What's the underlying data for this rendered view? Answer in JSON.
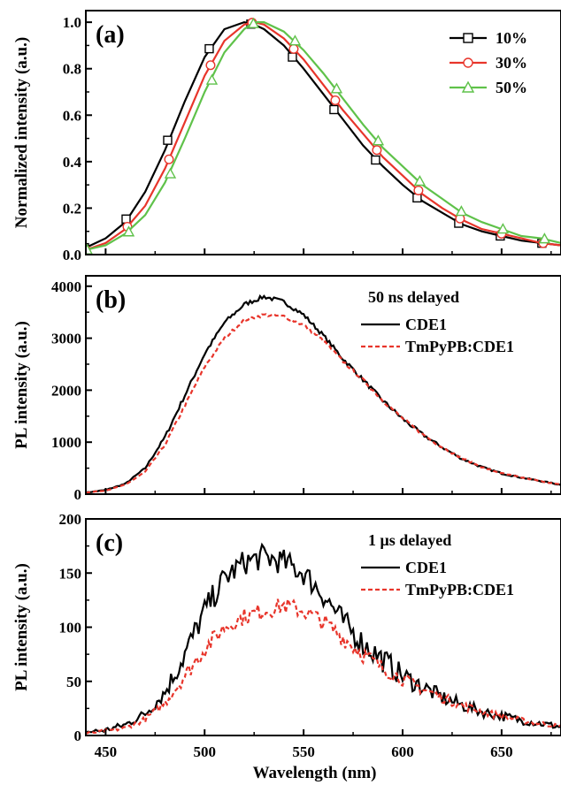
{
  "figure": {
    "xlabel": "Wavelength (nm)",
    "xlim": [
      440,
      680
    ],
    "xticks": [
      450,
      500,
      550,
      600,
      650
    ]
  },
  "chart_data": [
    {
      "type": "line",
      "panel_label": "(a)",
      "ylabel": "Normalized intensity (a.u.)",
      "ylim": [
        0,
        1.05
      ],
      "yticks": [
        0.0,
        0.2,
        0.4,
        0.6,
        0.8,
        1.0
      ],
      "ytick_labels": [
        "0.0",
        "0.2",
        "0.4",
        "0.6",
        "0.8",
        "1.0"
      ],
      "legend_position": "top-right",
      "series": [
        {
          "name": "10%",
          "color": "#000000",
          "marker": "square",
          "dash": "solid",
          "x": [
            440,
            450,
            460,
            470,
            480,
            490,
            500,
            510,
            520,
            525,
            530,
            540,
            550,
            560,
            570,
            580,
            590,
            600,
            610,
            620,
            630,
            640,
            650,
            660,
            670,
            680
          ],
          "y": [
            0.03,
            0.07,
            0.14,
            0.27,
            0.45,
            0.66,
            0.85,
            0.97,
            1.0,
            0.99,
            0.97,
            0.9,
            0.8,
            0.69,
            0.58,
            0.47,
            0.38,
            0.3,
            0.23,
            0.18,
            0.13,
            0.1,
            0.08,
            0.06,
            0.05,
            0.04
          ]
        },
        {
          "name": "30%",
          "color": "#e8352b",
          "marker": "circle",
          "dash": "solid",
          "x": [
            440,
            450,
            460,
            470,
            480,
            490,
            500,
            510,
            520,
            525,
            530,
            540,
            550,
            560,
            570,
            580,
            590,
            600,
            610,
            620,
            630,
            640,
            650,
            660,
            670,
            680
          ],
          "y": [
            0.02,
            0.05,
            0.11,
            0.21,
            0.37,
            0.57,
            0.77,
            0.92,
            0.99,
            1.0,
            0.99,
            0.93,
            0.84,
            0.73,
            0.62,
            0.52,
            0.42,
            0.34,
            0.26,
            0.2,
            0.15,
            0.11,
            0.09,
            0.07,
            0.05,
            0.04
          ]
        },
        {
          "name": "50%",
          "color": "#5fc24a",
          "marker": "triangle",
          "dash": "solid",
          "x": [
            440,
            450,
            460,
            470,
            480,
            490,
            500,
            510,
            520,
            525,
            530,
            540,
            550,
            560,
            570,
            580,
            590,
            600,
            610,
            620,
            630,
            640,
            650,
            660,
            670,
            680
          ],
          "y": [
            0.02,
            0.04,
            0.09,
            0.17,
            0.31,
            0.5,
            0.7,
            0.87,
            0.97,
            1.0,
            1.0,
            0.96,
            0.88,
            0.78,
            0.67,
            0.56,
            0.46,
            0.38,
            0.3,
            0.24,
            0.18,
            0.14,
            0.11,
            0.08,
            0.07,
            0.05
          ]
        }
      ]
    },
    {
      "type": "line",
      "panel_label": "(b)",
      "ylabel": "PL intensity (a.u.)",
      "annotation": "50 ns delayed",
      "ylim": [
        0,
        4200
      ],
      "yticks": [
        0,
        1000,
        2000,
        3000,
        4000
      ],
      "ytick_labels": [
        "0",
        "1000",
        "2000",
        "3000",
        "4000"
      ],
      "legend_position": "top-right",
      "series": [
        {
          "name": "CDE1",
          "color": "#000000",
          "dash": "solid",
          "noise": 40,
          "x": [
            440,
            450,
            460,
            470,
            480,
            490,
            500,
            510,
            520,
            530,
            540,
            550,
            560,
            570,
            580,
            590,
            600,
            610,
            620,
            630,
            640,
            650,
            660,
            670,
            680
          ],
          "y": [
            30,
            80,
            200,
            500,
            1100,
            1900,
            2700,
            3300,
            3650,
            3800,
            3700,
            3450,
            3050,
            2600,
            2200,
            1800,
            1450,
            1150,
            900,
            680,
            520,
            400,
            320,
            250,
            180
          ]
        },
        {
          "name": "TmPyPB:CDE1",
          "color": "#e8352b",
          "dash": "dashed",
          "noise": 30,
          "x": [
            440,
            450,
            460,
            470,
            480,
            490,
            500,
            510,
            520,
            530,
            540,
            550,
            560,
            570,
            580,
            590,
            600,
            610,
            620,
            630,
            640,
            650,
            660,
            670,
            680
          ],
          "y": [
            30,
            70,
            180,
            430,
            950,
            1700,
            2450,
            3000,
            3350,
            3450,
            3420,
            3250,
            2950,
            2550,
            2200,
            1800,
            1460,
            1150,
            900,
            690,
            520,
            400,
            320,
            250,
            180
          ]
        }
      ]
    },
    {
      "type": "line",
      "panel_label": "(c)",
      "ylabel": "PL intensity (a.u.)",
      "annotation": "1 μs delayed",
      "ylim": [
        0,
        200
      ],
      "yticks": [
        0,
        50,
        100,
        150,
        200
      ],
      "ytick_labels": [
        "0",
        "50",
        "100",
        "150",
        "200"
      ],
      "legend_position": "top-right",
      "series": [
        {
          "name": "CDE1",
          "color": "#000000",
          "dash": "solid",
          "noise": 12,
          "x": [
            440,
            450,
            460,
            470,
            480,
            490,
            500,
            510,
            520,
            530,
            540,
            550,
            560,
            570,
            580,
            590,
            600,
            610,
            620,
            630,
            640,
            650,
            660,
            670,
            680
          ],
          "y": [
            3,
            5,
            10,
            20,
            40,
            75,
            115,
            145,
            160,
            165,
            160,
            150,
            130,
            105,
            85,
            70,
            55,
            45,
            35,
            28,
            22,
            18,
            14,
            11,
            8
          ]
        },
        {
          "name": "TmPyPB:CDE1",
          "color": "#e8352b",
          "dash": "dashed",
          "noise": 8,
          "x": [
            440,
            450,
            460,
            470,
            480,
            490,
            500,
            510,
            520,
            530,
            540,
            550,
            560,
            570,
            580,
            590,
            600,
            610,
            620,
            630,
            640,
            650,
            660,
            670,
            680
          ],
          "y": [
            2,
            4,
            7,
            15,
            30,
            55,
            80,
            100,
            110,
            115,
            120,
            115,
            105,
            90,
            75,
            62,
            52,
            43,
            35,
            28,
            22,
            18,
            14,
            11,
            8
          ]
        }
      ]
    }
  ]
}
